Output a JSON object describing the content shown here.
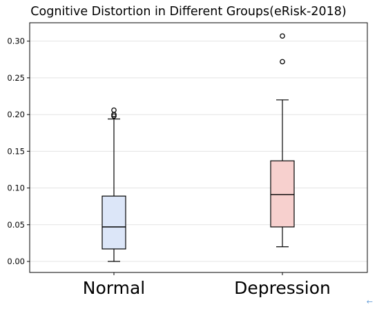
{
  "chart_data": {
    "type": "box",
    "title": "Cognitive Distortion in Different Groups(eRisk-2018)",
    "xlabel": "",
    "ylabel": "",
    "ylim": [
      -0.015,
      0.325
    ],
    "yticks": [
      "0.00",
      "0.05",
      "0.10",
      "0.15",
      "0.20",
      "0.25",
      "0.30"
    ],
    "ytick_values": [
      0.0,
      0.05,
      0.1,
      0.15,
      0.2,
      0.25,
      0.3
    ],
    "grid": "horizontal",
    "categories": [
      "Normal",
      "Depression"
    ],
    "series": [
      {
        "category": "Normal",
        "whisker_low": 0.0,
        "q1": 0.017,
        "median": 0.047,
        "q3": 0.089,
        "whisker_high": 0.194,
        "outliers": [
          0.198,
          0.2,
          0.206
        ],
        "color": "#dce6f8"
      },
      {
        "category": "Depression",
        "whisker_low": 0.02,
        "q1": 0.047,
        "median": 0.091,
        "q3": 0.137,
        "whisker_high": 0.22,
        "outliers": [
          0.272,
          0.307
        ],
        "color": "#f7d0ce"
      }
    ]
  },
  "ui": {
    "corner_icon": "arrow-left-icon"
  }
}
